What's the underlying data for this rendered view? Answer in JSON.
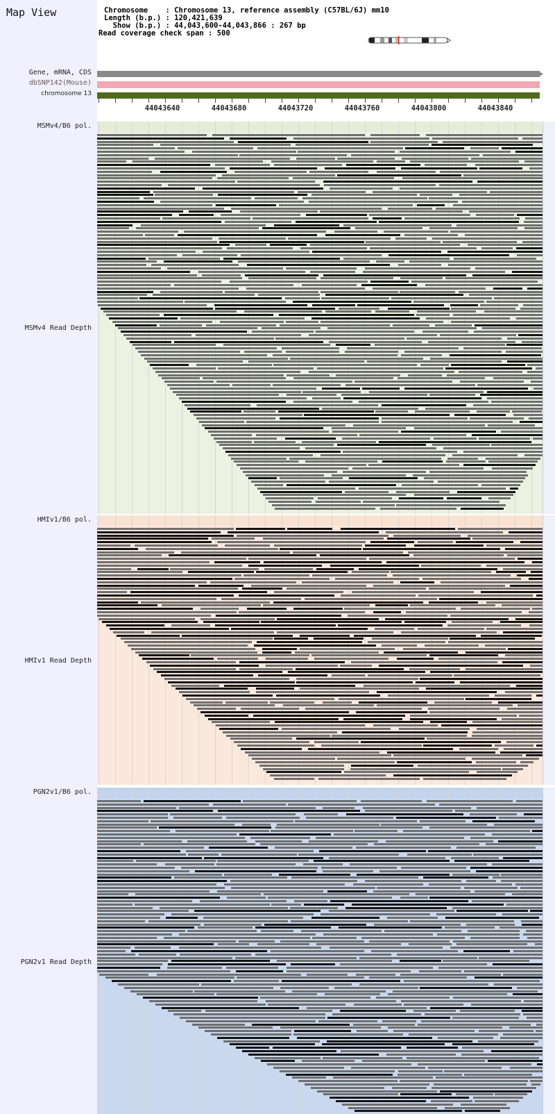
{
  "map_view": {
    "title": "Map View"
  },
  "info": {
    "chromosome_line": "Chromosome    : Chromosome 13, reference assembly (C57BL/6J) mm10",
    "length_line": "Length (b.p.) : 120,421,639",
    "show_line": "  Show (b.p.) : 44,043,600-44,043,866 : 267 bp",
    "coverage_line": "Read coverage check span : 500"
  },
  "tracks": {
    "gene": {
      "label": "Gene, mRNA, CDS",
      "color": "#888888"
    },
    "snp": {
      "label": "dbSNP142(Mouse)",
      "color": "#f2a8b4"
    },
    "chromosome": {
      "label": "chromosome 13",
      "color": "#4f6a1f"
    }
  },
  "ruler": {
    "ticks": [
      "44043640",
      "44043680",
      "44043720",
      "44043760",
      "44043800",
      "44043840"
    ]
  },
  "lanes": [
    {
      "pol_label": "MSMv4/B6 pol.",
      "depth_label": "MSMv4 Read Depth",
      "bg": "#edf1e2",
      "polbg": "#e6ecd8"
    },
    {
      "pol_label": "HMIv1/B6 pol.",
      "depth_label": "HMIv1 Read Depth",
      "bg": "#fbe8dc",
      "polbg": "#f9e2d2"
    },
    {
      "pol_label": "PGN2v1/B6 pol.",
      "depth_label": "PGN2v1 Read Depth",
      "bg": "#c9d8ee",
      "polbg": "#c2d3ec"
    }
  ],
  "colors": {
    "read_dark": "#141414",
    "read_gray": "#6e6e6e",
    "gridline": "#d6d6d6"
  }
}
